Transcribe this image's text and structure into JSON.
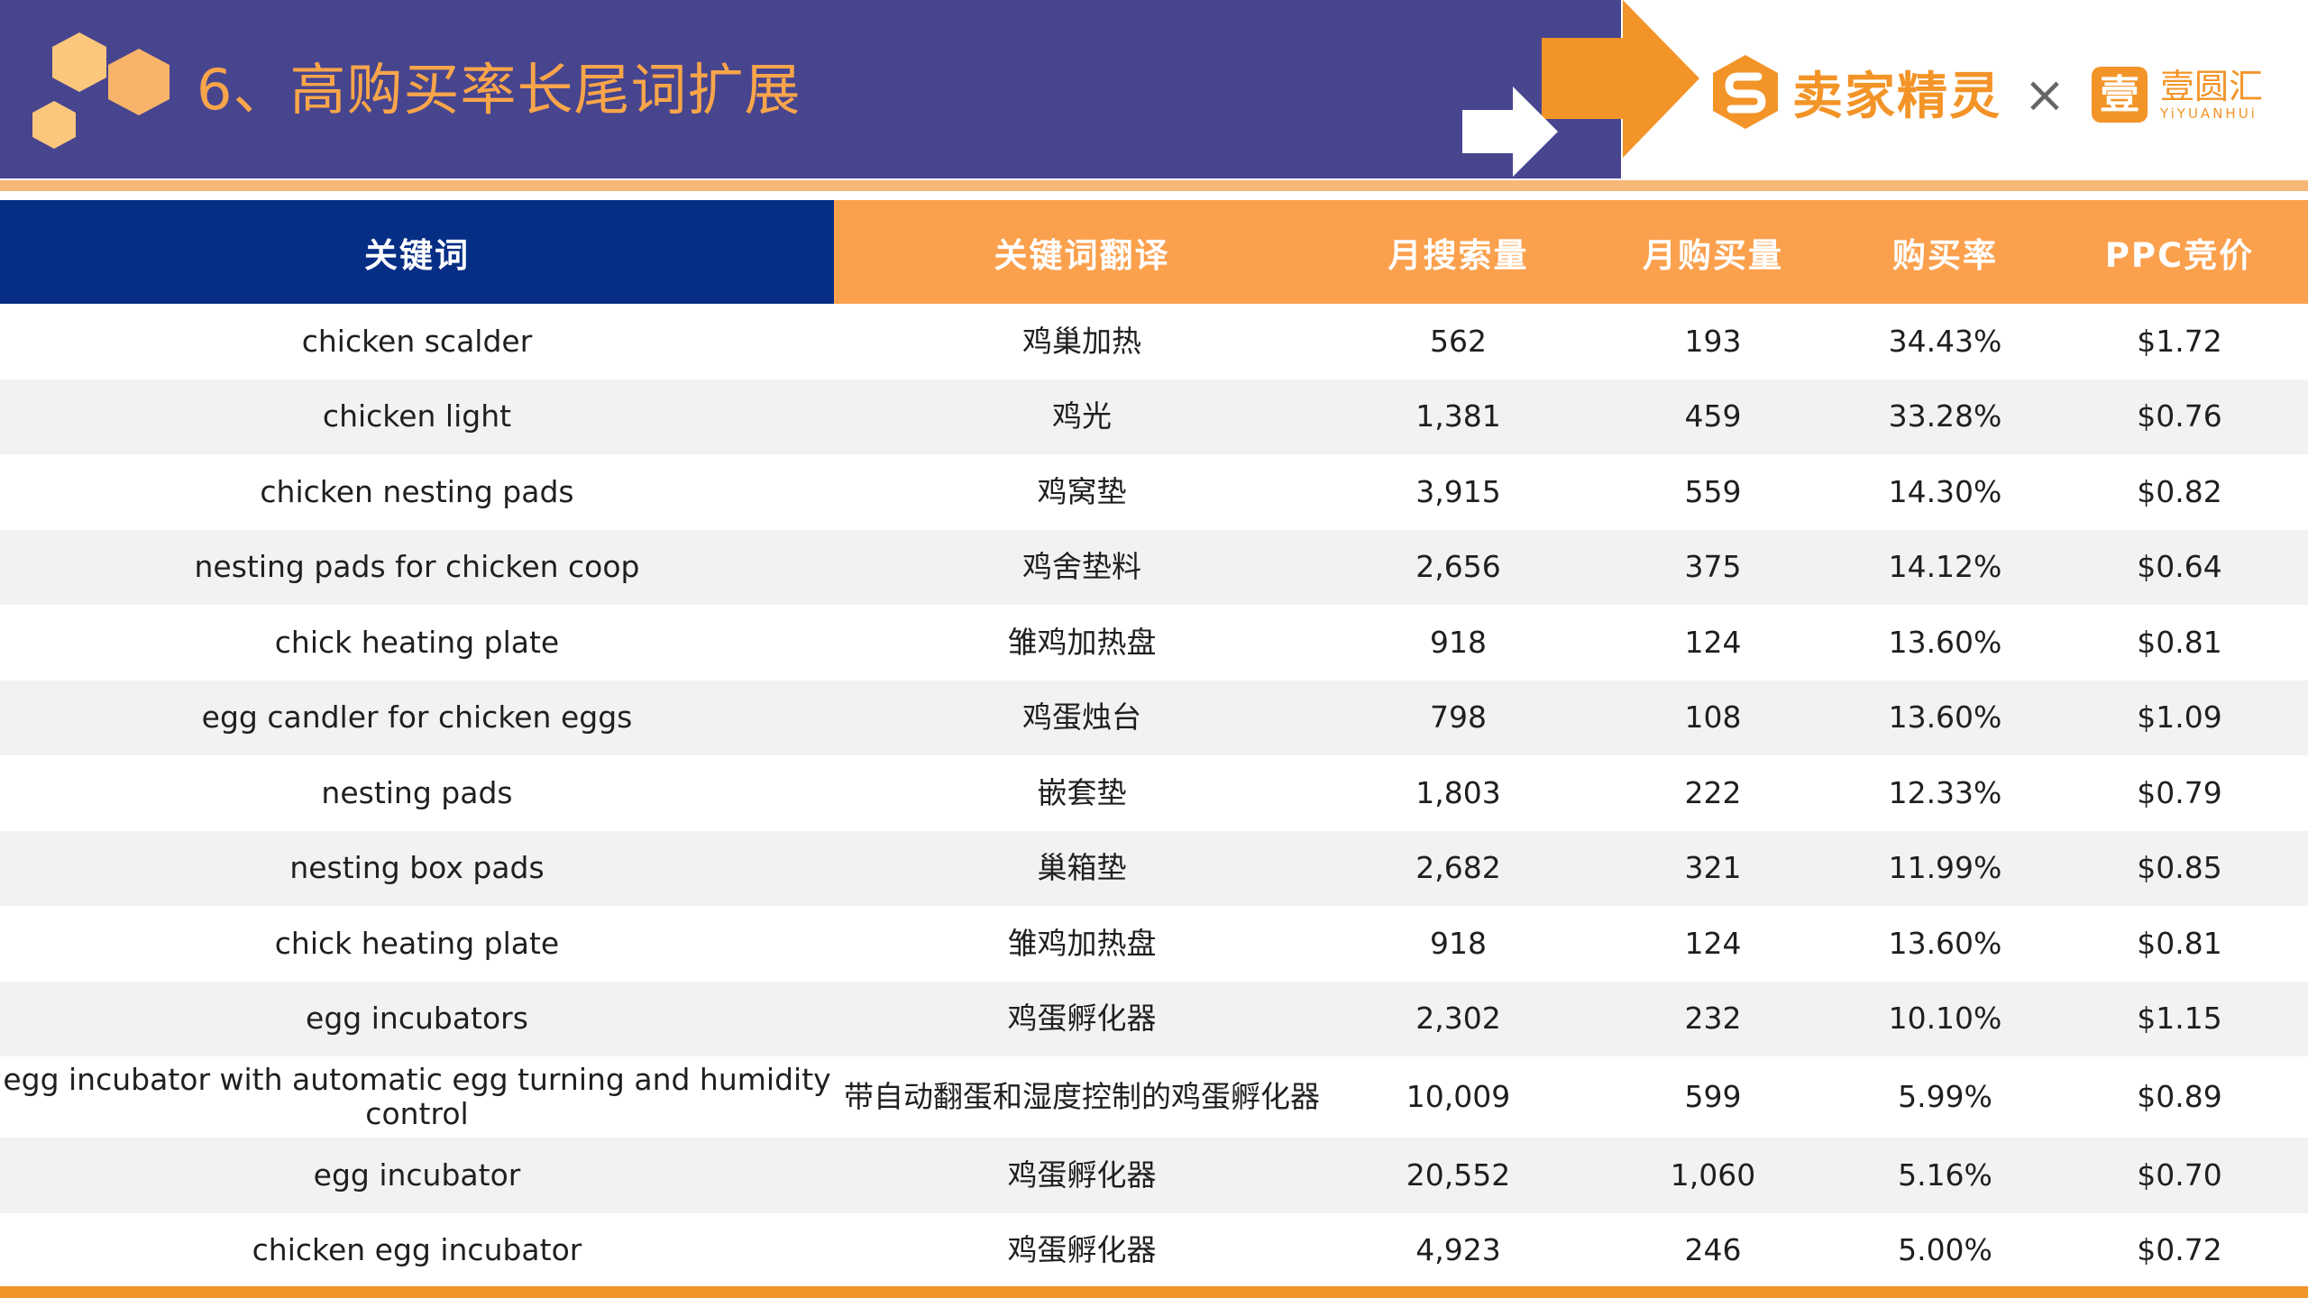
{
  "header": {
    "title": "6、高购买率长尾词扩展",
    "brand_name": "卖家精灵",
    "separator": "×",
    "partner_name": "壹圆汇",
    "partner_name_en": "YiYUANHUi",
    "colors": {
      "band": "#48458f",
      "accent": "#f9a54a",
      "brand": "#f39428"
    }
  },
  "table": {
    "headers": [
      "关键词",
      "关键词翻译",
      "月搜索量",
      "月购买量",
      "购买率",
      "PPC竞价"
    ],
    "rows": [
      [
        "chicken scalder",
        "鸡巢加热",
        "562",
        "193",
        "34.43%",
        "$1.72"
      ],
      [
        "chicken light",
        "鸡光",
        "1,381",
        "459",
        "33.28%",
        "$0.76"
      ],
      [
        "chicken nesting pads",
        "鸡窝垫",
        "3,915",
        "559",
        "14.30%",
        "$0.82"
      ],
      [
        "nesting pads for chicken coop",
        "鸡舍垫料",
        "2,656",
        "375",
        "14.12%",
        "$0.64"
      ],
      [
        "chick heating plate",
        "雏鸡加热盘",
        "918",
        "124",
        "13.60%",
        "$0.81"
      ],
      [
        "egg candler for chicken eggs",
        "鸡蛋烛台",
        "798",
        "108",
        "13.60%",
        "$1.09"
      ],
      [
        "nesting pads",
        "嵌套垫",
        "1,803",
        "222",
        "12.33%",
        "$0.79"
      ],
      [
        "nesting box pads",
        "巢箱垫",
        "2,682",
        "321",
        "11.99%",
        "$0.85"
      ],
      [
        "chick heating plate",
        "雏鸡加热盘",
        "918",
        "124",
        "13.60%",
        "$0.81"
      ],
      [
        "egg incubators",
        "鸡蛋孵化器",
        "2,302",
        "232",
        "10.10%",
        "$1.15"
      ],
      [
        "egg incubator with automatic egg turning and humidity control",
        "带自动翻蛋和湿度控制的鸡蛋孵化器",
        "10,009",
        "599",
        "5.99%",
        "$0.89"
      ],
      [
        "egg incubator",
        "鸡蛋孵化器",
        "20,552",
        "1,060",
        "5.16%",
        "$0.70"
      ],
      [
        "chicken egg incubator",
        "鸡蛋孵化器",
        "4,923",
        "246",
        "5.00%",
        "$0.72"
      ]
    ]
  }
}
